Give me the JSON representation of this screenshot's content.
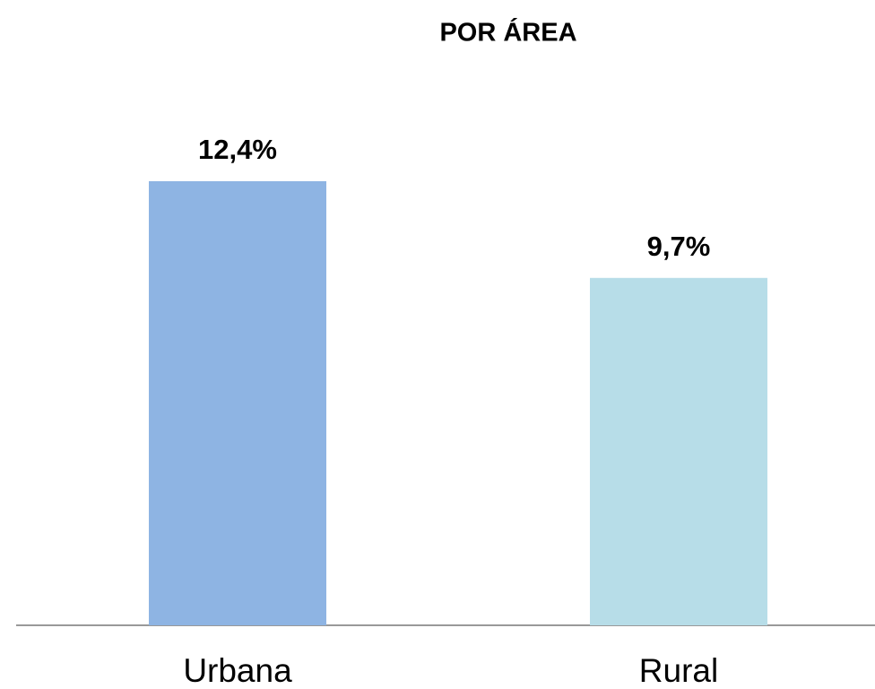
{
  "chart_data": {
    "type": "bar",
    "title": "POR ÁREA",
    "categories": [
      "Urbana",
      "Rural"
    ],
    "values": [
      12.4,
      9.7
    ],
    "value_labels": [
      "12,4%",
      "9,7%"
    ],
    "colors": [
      "#8eb4e3",
      "#b7dde8"
    ]
  }
}
